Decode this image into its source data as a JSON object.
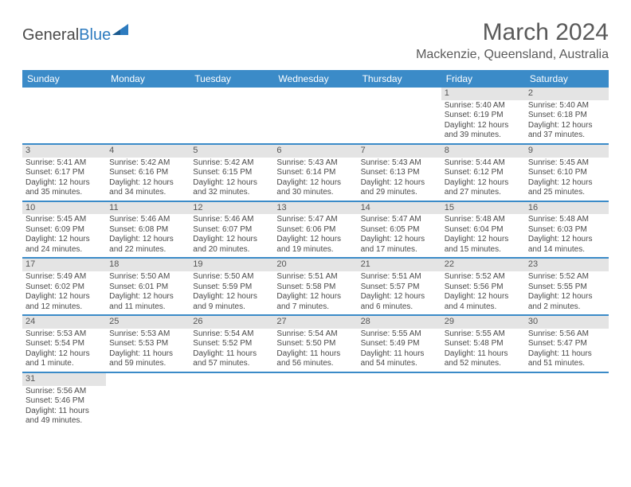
{
  "logo": {
    "text1": "General",
    "text2": "Blue"
  },
  "title": "March 2024",
  "location": "Mackenzie, Queensland, Australia",
  "colors": {
    "header_bg": "#3b8bc8",
    "header_fg": "#ffffff",
    "daynum_bg": "#e4e4e4",
    "text": "#4a4a4a",
    "rule": "#3b8bc8"
  },
  "weekdays": [
    "Sunday",
    "Monday",
    "Tuesday",
    "Wednesday",
    "Thursday",
    "Friday",
    "Saturday"
  ],
  "weeks": [
    [
      null,
      null,
      null,
      null,
      null,
      {
        "n": "1",
        "sr": "Sunrise: 5:40 AM",
        "ss": "Sunset: 6:19 PM",
        "dl": "Daylight: 12 hours and 39 minutes."
      },
      {
        "n": "2",
        "sr": "Sunrise: 5:40 AM",
        "ss": "Sunset: 6:18 PM",
        "dl": "Daylight: 12 hours and 37 minutes."
      }
    ],
    [
      {
        "n": "3",
        "sr": "Sunrise: 5:41 AM",
        "ss": "Sunset: 6:17 PM",
        "dl": "Daylight: 12 hours and 35 minutes."
      },
      {
        "n": "4",
        "sr": "Sunrise: 5:42 AM",
        "ss": "Sunset: 6:16 PM",
        "dl": "Daylight: 12 hours and 34 minutes."
      },
      {
        "n": "5",
        "sr": "Sunrise: 5:42 AM",
        "ss": "Sunset: 6:15 PM",
        "dl": "Daylight: 12 hours and 32 minutes."
      },
      {
        "n": "6",
        "sr": "Sunrise: 5:43 AM",
        "ss": "Sunset: 6:14 PM",
        "dl": "Daylight: 12 hours and 30 minutes."
      },
      {
        "n": "7",
        "sr": "Sunrise: 5:43 AM",
        "ss": "Sunset: 6:13 PM",
        "dl": "Daylight: 12 hours and 29 minutes."
      },
      {
        "n": "8",
        "sr": "Sunrise: 5:44 AM",
        "ss": "Sunset: 6:12 PM",
        "dl": "Daylight: 12 hours and 27 minutes."
      },
      {
        "n": "9",
        "sr": "Sunrise: 5:45 AM",
        "ss": "Sunset: 6:10 PM",
        "dl": "Daylight: 12 hours and 25 minutes."
      }
    ],
    [
      {
        "n": "10",
        "sr": "Sunrise: 5:45 AM",
        "ss": "Sunset: 6:09 PM",
        "dl": "Daylight: 12 hours and 24 minutes."
      },
      {
        "n": "11",
        "sr": "Sunrise: 5:46 AM",
        "ss": "Sunset: 6:08 PM",
        "dl": "Daylight: 12 hours and 22 minutes."
      },
      {
        "n": "12",
        "sr": "Sunrise: 5:46 AM",
        "ss": "Sunset: 6:07 PM",
        "dl": "Daylight: 12 hours and 20 minutes."
      },
      {
        "n": "13",
        "sr": "Sunrise: 5:47 AM",
        "ss": "Sunset: 6:06 PM",
        "dl": "Daylight: 12 hours and 19 minutes."
      },
      {
        "n": "14",
        "sr": "Sunrise: 5:47 AM",
        "ss": "Sunset: 6:05 PM",
        "dl": "Daylight: 12 hours and 17 minutes."
      },
      {
        "n": "15",
        "sr": "Sunrise: 5:48 AM",
        "ss": "Sunset: 6:04 PM",
        "dl": "Daylight: 12 hours and 15 minutes."
      },
      {
        "n": "16",
        "sr": "Sunrise: 5:48 AM",
        "ss": "Sunset: 6:03 PM",
        "dl": "Daylight: 12 hours and 14 minutes."
      }
    ],
    [
      {
        "n": "17",
        "sr": "Sunrise: 5:49 AM",
        "ss": "Sunset: 6:02 PM",
        "dl": "Daylight: 12 hours and 12 minutes."
      },
      {
        "n": "18",
        "sr": "Sunrise: 5:50 AM",
        "ss": "Sunset: 6:01 PM",
        "dl": "Daylight: 12 hours and 11 minutes."
      },
      {
        "n": "19",
        "sr": "Sunrise: 5:50 AM",
        "ss": "Sunset: 5:59 PM",
        "dl": "Daylight: 12 hours and 9 minutes."
      },
      {
        "n": "20",
        "sr": "Sunrise: 5:51 AM",
        "ss": "Sunset: 5:58 PM",
        "dl": "Daylight: 12 hours and 7 minutes."
      },
      {
        "n": "21",
        "sr": "Sunrise: 5:51 AM",
        "ss": "Sunset: 5:57 PM",
        "dl": "Daylight: 12 hours and 6 minutes."
      },
      {
        "n": "22",
        "sr": "Sunrise: 5:52 AM",
        "ss": "Sunset: 5:56 PM",
        "dl": "Daylight: 12 hours and 4 minutes."
      },
      {
        "n": "23",
        "sr": "Sunrise: 5:52 AM",
        "ss": "Sunset: 5:55 PM",
        "dl": "Daylight: 12 hours and 2 minutes."
      }
    ],
    [
      {
        "n": "24",
        "sr": "Sunrise: 5:53 AM",
        "ss": "Sunset: 5:54 PM",
        "dl": "Daylight: 12 hours and 1 minute."
      },
      {
        "n": "25",
        "sr": "Sunrise: 5:53 AM",
        "ss": "Sunset: 5:53 PM",
        "dl": "Daylight: 11 hours and 59 minutes."
      },
      {
        "n": "26",
        "sr": "Sunrise: 5:54 AM",
        "ss": "Sunset: 5:52 PM",
        "dl": "Daylight: 11 hours and 57 minutes."
      },
      {
        "n": "27",
        "sr": "Sunrise: 5:54 AM",
        "ss": "Sunset: 5:50 PM",
        "dl": "Daylight: 11 hours and 56 minutes."
      },
      {
        "n": "28",
        "sr": "Sunrise: 5:55 AM",
        "ss": "Sunset: 5:49 PM",
        "dl": "Daylight: 11 hours and 54 minutes."
      },
      {
        "n": "29",
        "sr": "Sunrise: 5:55 AM",
        "ss": "Sunset: 5:48 PM",
        "dl": "Daylight: 11 hours and 52 minutes."
      },
      {
        "n": "30",
        "sr": "Sunrise: 5:56 AM",
        "ss": "Sunset: 5:47 PM",
        "dl": "Daylight: 11 hours and 51 minutes."
      }
    ],
    [
      {
        "n": "31",
        "sr": "Sunrise: 5:56 AM",
        "ss": "Sunset: 5:46 PM",
        "dl": "Daylight: 11 hours and 49 minutes."
      },
      null,
      null,
      null,
      null,
      null,
      null
    ]
  ]
}
